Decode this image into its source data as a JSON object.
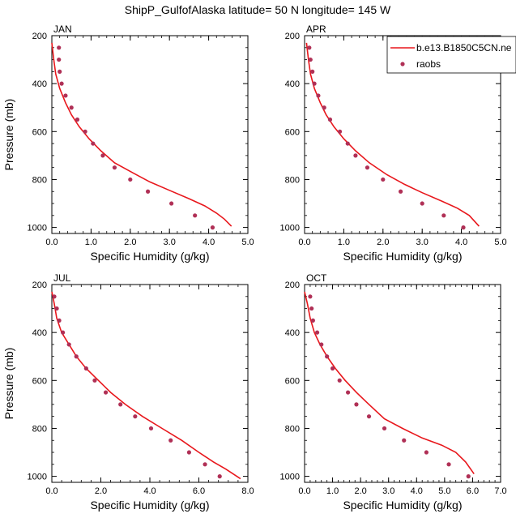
{
  "figure": {
    "title": "ShipP_GulfofAlaska  latitude= 50 N longitude= 145 W"
  },
  "legend": {
    "model_label": "b.e13.B1850C5CN.ne",
    "obs_label": "raobs",
    "model_color": "#e8171c",
    "obs_color": "#b03056"
  },
  "chart_data": [
    {
      "type": "line",
      "panel": "JAN",
      "xlabel": "Specific Humidity (g/kg)",
      "ylabel": "Pressure (mb)",
      "xlim": [
        0,
        5
      ],
      "ylim": [
        200,
        1025
      ],
      "y_reversed": true,
      "x_ticks": [
        "0.0",
        "1.0",
        "2.0",
        "3.0",
        "4.0",
        "5.0"
      ],
      "y_ticks": [
        "200",
        "400",
        "600",
        "800",
        "1000"
      ],
      "series": [
        {
          "name": "b.e13.B1850C5CN.ne",
          "mark": "line",
          "x": [
            0.0,
            0.05,
            0.1,
            0.2,
            0.35,
            0.5,
            0.7,
            0.95,
            1.25,
            1.6,
            2.1,
            2.5,
            3.0,
            3.5,
            3.9,
            4.2,
            4.4,
            4.58
          ],
          "y": [
            230,
            300,
            360,
            420,
            480,
            530,
            580,
            630,
            680,
            730,
            775,
            810,
            845,
            880,
            910,
            940,
            965,
            995
          ]
        },
        {
          "name": "raobs",
          "mark": "points",
          "x": [
            0.18,
            0.18,
            0.2,
            0.25,
            0.35,
            0.5,
            0.65,
            0.85,
            1.05,
            1.3,
            1.6,
            2.0,
            2.45,
            3.05,
            3.65,
            4.1
          ],
          "y": [
            250,
            300,
            350,
            400,
            450,
            500,
            550,
            600,
            650,
            700,
            750,
            800,
            850,
            900,
            950,
            1000
          ]
        }
      ]
    },
    {
      "type": "line",
      "panel": "APR",
      "xlabel": "Specific Humidity (g/kg)",
      "ylabel": "Pressure (mb)",
      "xlim": [
        0,
        5
      ],
      "ylim": [
        200,
        1025
      ],
      "y_reversed": true,
      "x_ticks": [
        "0.0",
        "1.0",
        "2.0",
        "3.0",
        "4.0",
        "5.0"
      ],
      "y_ticks": [
        "200",
        "400",
        "600",
        "800",
        "1000"
      ],
      "series": [
        {
          "name": "b.e13.B1850C5CN.ne",
          "mark": "line",
          "x": [
            0.05,
            0.1,
            0.15,
            0.25,
            0.4,
            0.55,
            0.75,
            1.0,
            1.3,
            1.65,
            2.1,
            2.55,
            3.0,
            3.5,
            3.9,
            4.2,
            4.45
          ],
          "y": [
            230,
            300,
            360,
            420,
            480,
            530,
            580,
            630,
            680,
            730,
            780,
            820,
            855,
            890,
            920,
            950,
            995
          ]
        },
        {
          "name": "raobs",
          "mark": "points",
          "x": [
            0.12,
            0.15,
            0.2,
            0.25,
            0.35,
            0.5,
            0.65,
            0.9,
            1.1,
            1.3,
            1.6,
            2.0,
            2.45,
            3.0,
            3.55,
            4.05
          ],
          "y": [
            250,
            300,
            350,
            400,
            450,
            500,
            550,
            600,
            650,
            700,
            750,
            800,
            850,
            900,
            950,
            1000
          ]
        }
      ]
    },
    {
      "type": "line",
      "panel": "JUL",
      "xlabel": "Specific Humidity (g/kg)",
      "ylabel": "Pressure (mb)",
      "xlim": [
        0,
        8
      ],
      "ylim": [
        200,
        1025
      ],
      "y_reversed": true,
      "x_ticks": [
        "0.0",
        "2.0",
        "4.0",
        "6.0",
        "8.0"
      ],
      "y_ticks": [
        "200",
        "400",
        "600",
        "800",
        "1000"
      ],
      "series": [
        {
          "name": "b.e13.B1850C5CN.ne",
          "mark": "line",
          "x": [
            0.0,
            0.1,
            0.2,
            0.4,
            0.7,
            1.0,
            1.4,
            1.9,
            2.4,
            3.0,
            3.7,
            4.5,
            5.3,
            6.0,
            6.6,
            7.1,
            7.7
          ],
          "y": [
            230,
            280,
            340,
            400,
            450,
            500,
            550,
            600,
            650,
            700,
            750,
            800,
            850,
            900,
            940,
            970,
            1010
          ]
        },
        {
          "name": "raobs",
          "mark": "points",
          "x": [
            0.1,
            0.2,
            0.3,
            0.45,
            0.7,
            1.0,
            1.4,
            1.75,
            2.2,
            2.8,
            3.4,
            4.05,
            4.85,
            5.6,
            6.25,
            6.85
          ],
          "y": [
            250,
            300,
            350,
            400,
            450,
            500,
            550,
            600,
            650,
            700,
            750,
            800,
            850,
            900,
            950,
            1000
          ]
        }
      ]
    },
    {
      "type": "line",
      "panel": "OCT",
      "xlabel": "Specific Humidity (g/kg)",
      "ylabel": "Pressure (mb)",
      "xlim": [
        0,
        7
      ],
      "ylim": [
        200,
        1025
      ],
      "y_reversed": true,
      "x_ticks": [
        "0.0",
        "1.0",
        "2.0",
        "3.0",
        "4.0",
        "5.0",
        "6.0",
        "7.0"
      ],
      "y_ticks": [
        "200",
        "400",
        "600",
        "800",
        "1000"
      ],
      "series": [
        {
          "name": "b.e13.B1850C5CN.ne",
          "mark": "line",
          "x": [
            0.0,
            0.1,
            0.2,
            0.35,
            0.55,
            0.8,
            1.1,
            1.45,
            1.85,
            2.3,
            2.85,
            3.5,
            4.2,
            4.9,
            5.4,
            5.75,
            6.05
          ],
          "y": [
            230,
            280,
            340,
            400,
            450,
            500,
            550,
            600,
            650,
            700,
            760,
            800,
            840,
            870,
            900,
            940,
            990
          ]
        },
        {
          "name": "raobs",
          "mark": "points",
          "x": [
            0.2,
            0.25,
            0.3,
            0.45,
            0.6,
            0.8,
            1.0,
            1.25,
            1.55,
            1.85,
            2.3,
            2.85,
            3.55,
            4.35,
            5.15,
            5.85
          ],
          "y": [
            250,
            300,
            350,
            400,
            450,
            500,
            550,
            600,
            650,
            700,
            750,
            800,
            850,
            900,
            950,
            1000
          ]
        }
      ]
    }
  ]
}
